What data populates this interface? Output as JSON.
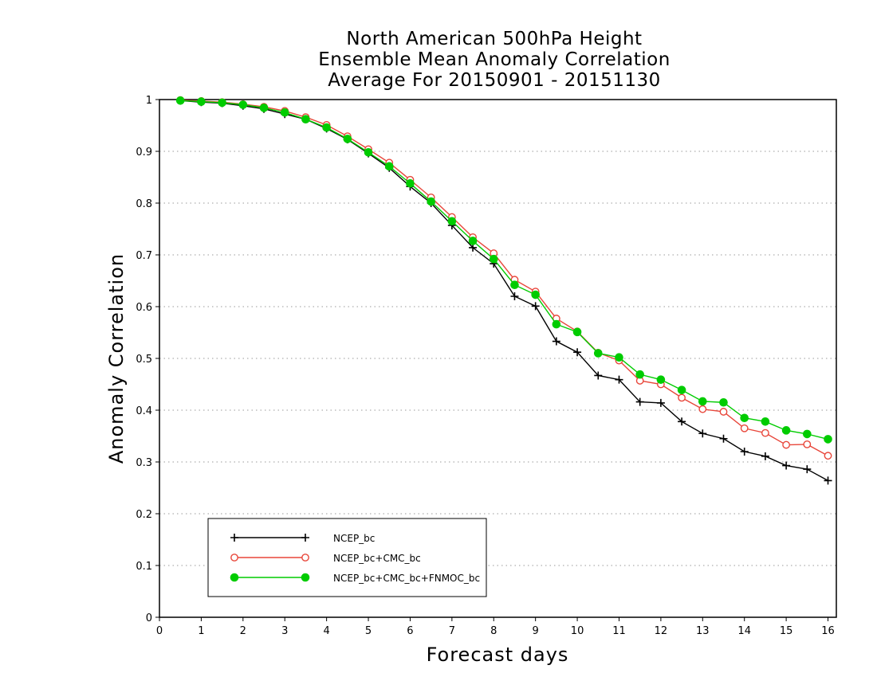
{
  "chart_data": {
    "type": "line",
    "title_lines": [
      "North American 500hPa Height",
      "Ensemble Mean Anomaly Correlation",
      "Average For 20150901 - 20151130"
    ],
    "xlabel": "Forecast days",
    "ylabel": "Anomaly Correlation",
    "xlim": [
      0,
      16.2
    ],
    "ylim": [
      0,
      1
    ],
    "xticks": [
      0,
      1,
      2,
      3,
      4,
      5,
      6,
      7,
      8,
      9,
      10,
      11,
      12,
      13,
      14,
      15,
      16
    ],
    "yticks": [
      0,
      0.1,
      0.2,
      0.3,
      0.4,
      0.5,
      0.6,
      0.7,
      0.8,
      0.9,
      1
    ],
    "ytick_labels": [
      "0",
      "0.1",
      "0.2",
      "0.3",
      "0.4",
      "0.5",
      "0.6",
      "0.7",
      "0.8",
      "0.9",
      "1"
    ],
    "grid": "horizontal dotted",
    "legend_position": "bottom-left",
    "x": [
      0.5,
      1,
      1.5,
      2,
      2.5,
      3,
      3.5,
      4,
      4.5,
      5,
      5.5,
      6,
      6.5,
      7,
      7.5,
      8,
      8.5,
      9,
      9.5,
      10,
      10.5,
      11,
      11.5,
      12,
      12.5,
      13,
      13.5,
      14,
      14.5,
      15,
      15.5,
      16
    ],
    "series": [
      {
        "name": "NCEP_bc",
        "color": "#000000",
        "marker": "plus",
        "values": [
          0.998,
          0.995,
          0.993,
          0.988,
          0.982,
          0.972,
          0.962,
          0.944,
          0.923,
          0.896,
          0.868,
          0.832,
          0.8,
          0.757,
          0.714,
          0.683,
          0.62,
          0.601,
          0.533,
          0.512,
          0.467,
          0.459,
          0.416,
          0.414,
          0.378,
          0.355,
          0.345,
          0.32,
          0.311,
          0.293,
          0.286,
          0.264
        ]
      },
      {
        "name": "NCEP_bc+CMC_bc",
        "color": "#e8463a",
        "marker": "open-circle",
        "values": [
          0.999,
          0.997,
          0.995,
          0.991,
          0.986,
          0.978,
          0.966,
          0.951,
          0.929,
          0.904,
          0.878,
          0.845,
          0.811,
          0.773,
          0.734,
          0.703,
          0.652,
          0.629,
          0.577,
          0.552,
          0.511,
          0.496,
          0.457,
          0.45,
          0.424,
          0.402,
          0.397,
          0.365,
          0.356,
          0.333,
          0.334,
          0.312
        ]
      },
      {
        "name": "NCEP_bc+CMC_bc+FNMOC_bc",
        "color": "#00cc00",
        "marker": "filled-circle",
        "values": [
          0.998,
          0.996,
          0.994,
          0.99,
          0.984,
          0.975,
          0.962,
          0.946,
          0.924,
          0.898,
          0.871,
          0.838,
          0.803,
          0.765,
          0.727,
          0.692,
          0.642,
          0.623,
          0.566,
          0.551,
          0.51,
          0.502,
          0.469,
          0.459,
          0.439,
          0.417,
          0.415,
          0.385,
          0.378,
          0.361,
          0.354,
          0.344
        ]
      }
    ]
  }
}
